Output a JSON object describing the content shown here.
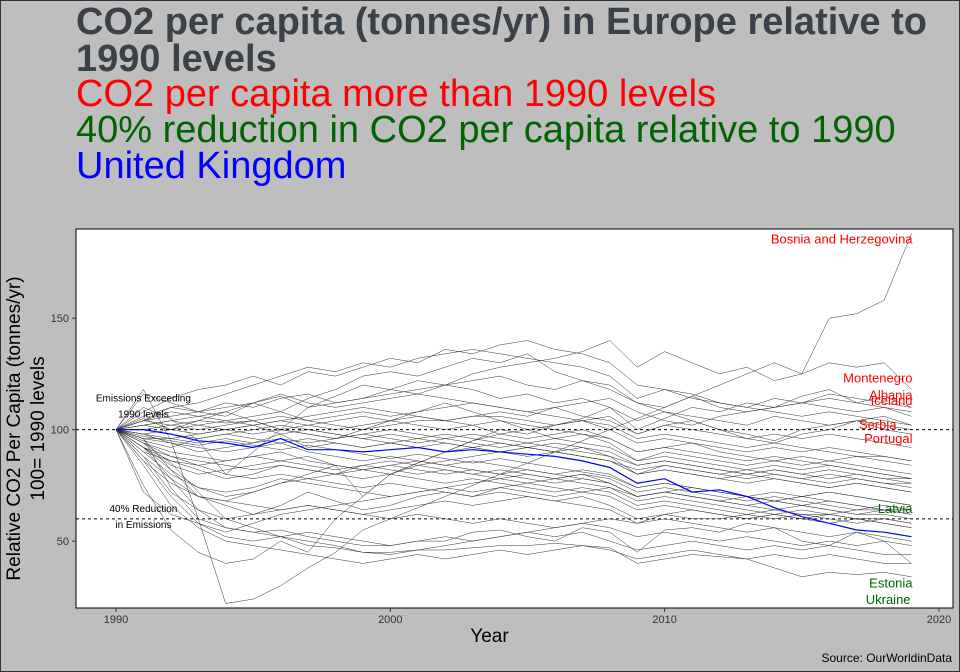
{
  "title": "CO2 per capita (tonnes/yr) in Europe relative to 1990 levels",
  "subtitle_lines": [
    {
      "text": "CO2 per capita more than 1990 levels",
      "color": "#ff0000"
    },
    {
      "text": "40% reduction in CO2 per capita relative to 1990",
      "color": "#006400"
    },
    {
      "text": "United Kingdom",
      "color": "#0000ff"
    }
  ],
  "caption": "Source: OurWorldinData",
  "colors": {
    "background": "#bebebe",
    "panel": "#ffffff",
    "series": "#333333",
    "highlight": "#0000ff",
    "above": "#ff0000",
    "below": "#006400"
  },
  "chart_data": {
    "type": "line",
    "xlabel": "Year",
    "ylabel": "Relative CO2 Per Capita (tonnes/yr)\n100= 1990 levels",
    "xlim": [
      1990,
      2020
    ],
    "ylim": [
      20,
      190
    ],
    "xticks": [
      1990,
      2000,
      2010,
      2020
    ],
    "yticks": [
      50,
      100,
      150
    ],
    "grid": false,
    "reference_lines": [
      {
        "y": 100,
        "style": "dashed",
        "label": "Emissions Exceeding\n1990 levels"
      },
      {
        "y": 60,
        "style": "dashed",
        "label": "40% Reduction\nin Emissions"
      }
    ],
    "x": [
      1990,
      1991,
      1992,
      1993,
      1994,
      1995,
      1996,
      1997,
      1998,
      1999,
      2000,
      2001,
      2002,
      2003,
      2004,
      2005,
      2006,
      2007,
      2008,
      2009,
      2010,
      2011,
      2012,
      2013,
      2014,
      2015,
      2016,
      2017,
      2018,
      2019
    ],
    "highlight_series": {
      "name": "United Kingdom",
      "values": [
        100,
        100,
        98,
        95,
        94,
        92,
        96,
        91,
        91,
        90,
        91,
        92,
        90,
        91,
        90,
        89,
        88,
        86,
        83,
        76,
        78,
        72,
        73,
        70,
        65,
        61,
        58,
        55,
        54,
        52
      ]
    },
    "labeled_series": [
      {
        "name": "Bosnia and Herzegovina",
        "group": "above",
        "values": [
          100,
          118,
          95,
          60,
          22,
          24,
          30,
          38,
          45,
          55,
          60,
          65,
          70,
          75,
          80,
          85,
          90,
          95,
          100,
          105,
          110,
          115,
          120,
          125,
          130,
          125,
          150,
          152,
          158,
          188
        ]
      },
      {
        "name": "Montenegro",
        "group": "above",
        "values": [
          100,
          110,
          105,
          95,
          80,
          90,
          100,
          110,
          115,
          120,
          118,
          122,
          120,
          125,
          128,
          130,
          132,
          135,
          140,
          128,
          135,
          130,
          125,
          128,
          122,
          125,
          130,
          128,
          130,
          118
        ]
      },
      {
        "name": "Albania",
        "group": "above",
        "values": [
          100,
          75,
          55,
          45,
          40,
          42,
          50,
          45,
          60,
          70,
          80,
          85,
          90,
          95,
          100,
          98,
          102,
          105,
          110,
          100,
          105,
          110,
          108,
          112,
          110,
          115,
          118,
          112,
          115,
          110
        ]
      },
      {
        "name": "Iceland",
        "group": "above",
        "values": [
          100,
          102,
          104,
          106,
          104,
          102,
          104,
          106,
          108,
          110,
          108,
          106,
          104,
          106,
          108,
          106,
          110,
          112,
          114,
          108,
          104,
          102,
          106,
          108,
          110,
          112,
          114,
          112,
          110,
          108
        ]
      },
      {
        "name": "Serbia",
        "group": "above",
        "values": [
          100,
          96,
          82,
          70,
          68,
          72,
          76,
          80,
          84,
          70,
          80,
          85,
          90,
          95,
          98,
          100,
          102,
          104,
          106,
          98,
          102,
          104,
          100,
          98,
          95,
          100,
          102,
          104,
          106,
          102
        ]
      },
      {
        "name": "Portugal",
        "group": "above",
        "values": [
          100,
          104,
          110,
          108,
          106,
          112,
          108,
          114,
          118,
          124,
          126,
          124,
          128,
          132,
          130,
          134,
          126,
          122,
          118,
          112,
          108,
          104,
          100,
          96,
          94,
          98,
          100,
          104,
          100,
          98
        ]
      },
      {
        "name": "Latvia",
        "group": "below",
        "values": [
          100,
          92,
          78,
          64,
          56,
          54,
          52,
          50,
          48,
          45,
          44,
          46,
          48,
          50,
          52,
          54,
          56,
          58,
          60,
          58,
          62,
          60,
          60,
          62,
          60,
          62,
          62,
          64,
          64,
          64
        ]
      },
      {
        "name": "Estonia",
        "group": "below",
        "values": [
          100,
          96,
          74,
          60,
          56,
          54,
          55,
          52,
          50,
          48,
          48,
          50,
          50,
          54,
          55,
          52,
          50,
          56,
          54,
          45,
          55,
          56,
          54,
          58,
          56,
          50,
          48,
          54,
          50,
          40
        ]
      },
      {
        "name": "Ukraine",
        "group": "below",
        "values": [
          100,
          94,
          85,
          72,
          60,
          56,
          52,
          48,
          47,
          45,
          45,
          46,
          46,
          47,
          48,
          48,
          49,
          48,
          47,
          40,
          42,
          44,
          43,
          42,
          38,
          34,
          36,
          35,
          36,
          34
        ]
      }
    ],
    "other_series": [
      [
        100,
        116,
        112,
        108,
        110,
        112,
        115,
        110,
        112,
        114,
        116,
        118,
        120,
        122,
        124,
        120,
        118,
        122,
        120,
        112,
        110,
        115,
        110,
        108,
        110,
        112,
        110,
        108,
        110,
        106
      ],
      [
        100,
        108,
        114,
        118,
        120,
        124,
        120,
        126,
        124,
        128,
        132,
        130,
        136,
        134,
        138,
        140,
        136,
        134,
        130,
        120,
        118,
        114,
        112,
        110,
        108,
        106,
        108,
        106,
        104,
        102
      ],
      [
        100,
        106,
        110,
        112,
        116,
        120,
        124,
        128,
        126,
        130,
        128,
        132,
        134,
        136,
        134,
        132,
        130,
        128,
        124,
        114,
        118,
        116,
        112,
        110,
        114,
        112,
        116,
        114,
        112,
        110
      ],
      [
        100,
        104,
        106,
        108,
        112,
        110,
        114,
        116,
        112,
        114,
        118,
        116,
        120,
        118,
        114,
        116,
        112,
        114,
        110,
        104,
        108,
        106,
        104,
        102,
        106,
        104,
        102,
        104,
        102,
        100
      ],
      [
        100,
        102,
        104,
        102,
        104,
        106,
        108,
        104,
        106,
        108,
        106,
        108,
        110,
        112,
        110,
        108,
        110,
        106,
        104,
        98,
        102,
        100,
        98,
        96,
        98,
        96,
        98,
        96,
        94,
        92
      ],
      [
        100,
        100,
        102,
        104,
        103,
        104,
        106,
        104,
        102,
        100,
        102,
        104,
        104,
        106,
        106,
        104,
        102,
        104,
        100,
        94,
        96,
        94,
        92,
        90,
        92,
        90,
        92,
        90,
        88,
        86
      ],
      [
        100,
        104,
        102,
        100,
        102,
        104,
        100,
        102,
        104,
        106,
        104,
        102,
        100,
        102,
        98,
        96,
        98,
        100,
        96,
        90,
        92,
        94,
        90,
        88,
        86,
        88,
        86,
        88,
        86,
        84
      ],
      [
        100,
        98,
        100,
        102,
        100,
        98,
        100,
        98,
        96,
        98,
        100,
        98,
        96,
        98,
        96,
        94,
        96,
        94,
        92,
        86,
        88,
        86,
        84,
        82,
        84,
        82,
        84,
        82,
        80,
        78
      ],
      [
        100,
        102,
        100,
        98,
        100,
        102,
        98,
        100,
        98,
        96,
        98,
        96,
        98,
        96,
        94,
        92,
        94,
        92,
        90,
        84,
        86,
        84,
        82,
        80,
        82,
        80,
        78,
        80,
        78,
        76
      ],
      [
        100,
        98,
        96,
        94,
        96,
        94,
        98,
        92,
        94,
        92,
        94,
        92,
        90,
        92,
        90,
        88,
        90,
        88,
        86,
        80,
        82,
        80,
        78,
        76,
        78,
        76,
        74,
        76,
        74,
        72
      ],
      [
        100,
        96,
        94,
        92,
        90,
        92,
        94,
        90,
        88,
        86,
        88,
        86,
        84,
        86,
        84,
        82,
        80,
        82,
        80,
        74,
        76,
        74,
        72,
        70,
        72,
        70,
        72,
        70,
        68,
        66
      ],
      [
        100,
        97,
        95,
        93,
        95,
        93,
        91,
        93,
        91,
        89,
        87,
        89,
        87,
        85,
        87,
        85,
        83,
        81,
        79,
        74,
        76,
        74,
        72,
        70,
        68,
        70,
        68,
        66,
        64,
        62
      ],
      [
        100,
        94,
        90,
        88,
        86,
        88,
        90,
        86,
        84,
        82,
        84,
        82,
        80,
        82,
        80,
        78,
        76,
        78,
        76,
        70,
        72,
        70,
        68,
        66,
        64,
        66,
        64,
        62,
        62,
        60
      ],
      [
        100,
        92,
        88,
        86,
        84,
        82,
        84,
        82,
        80,
        78,
        80,
        78,
        76,
        78,
        76,
        74,
        72,
        74,
        72,
        66,
        68,
        66,
        64,
        62,
        64,
        62,
        60,
        58,
        60,
        58
      ],
      [
        100,
        90,
        86,
        84,
        80,
        78,
        80,
        78,
        76,
        74,
        76,
        74,
        72,
        70,
        72,
        70,
        68,
        66,
        64,
        58,
        60,
        58,
        56,
        54,
        56,
        54,
        52,
        54,
        52,
        50
      ],
      [
        100,
        92,
        82,
        74,
        70,
        72,
        76,
        78,
        80,
        82,
        80,
        84,
        86,
        88,
        90,
        92,
        90,
        92,
        88,
        80,
        84,
        82,
        80,
        78,
        80,
        78,
        76,
        78,
        76,
        74
      ],
      [
        100,
        88,
        72,
        64,
        60,
        62,
        64,
        66,
        64,
        62,
        64,
        66,
        68,
        66,
        68,
        70,
        68,
        70,
        66,
        60,
        62,
        64,
        62,
        60,
        62,
        60,
        62,
        60,
        58,
        56
      ],
      [
        100,
        86,
        70,
        58,
        52,
        50,
        52,
        54,
        52,
        50,
        48,
        50,
        52,
        50,
        52,
        54,
        52,
        54,
        50,
        46,
        48,
        50,
        48,
        46,
        48,
        46,
        48,
        46,
        44,
        44
      ],
      [
        100,
        84,
        66,
        56,
        50,
        48,
        46,
        44,
        42,
        40,
        42,
        44,
        42,
        44,
        46,
        44,
        46,
        48,
        46,
        42,
        44,
        46,
        44,
        42,
        44,
        42,
        44,
        42,
        40,
        40
      ],
      [
        100,
        90,
        80,
        74,
        72,
        74,
        78,
        76,
        74,
        72,
        70,
        72,
        74,
        72,
        74,
        72,
        70,
        72,
        70,
        64,
        66,
        64,
        62,
        60,
        62,
        60,
        58,
        60,
        58,
        56
      ],
      [
        100,
        94,
        88,
        84,
        86,
        88,
        86,
        84,
        82,
        84,
        82,
        80,
        82,
        80,
        78,
        76,
        78,
        76,
        74,
        68,
        70,
        68,
        66,
        64,
        62,
        64,
        62,
        60,
        60,
        58
      ],
      [
        100,
        95,
        92,
        96,
        98,
        96,
        94,
        96,
        94,
        92,
        94,
        92,
        94,
        92,
        90,
        92,
        90,
        88,
        86,
        80,
        82,
        80,
        78,
        80,
        78,
        76,
        74,
        76,
        74,
        72
      ],
      [
        100,
        88,
        78,
        70,
        66,
        62,
        66,
        72,
        68,
        64,
        66,
        70,
        72,
        70,
        74,
        76,
        74,
        72,
        74,
        70,
        72,
        70,
        68,
        70,
        68,
        66,
        68,
        66,
        64,
        64
      ],
      [
        100,
        96,
        96,
        98,
        100,
        102,
        104,
        102,
        100,
        102,
        104,
        106,
        104,
        102,
        104,
        102,
        100,
        98,
        96,
        90,
        92,
        90,
        88,
        86,
        88,
        86,
        84,
        82,
        80,
        78
      ],
      [
        100,
        104,
        108,
        106,
        108,
        112,
        116,
        112,
        110,
        112,
        114,
        116,
        114,
        112,
        110,
        108,
        106,
        104,
        102,
        96,
        98,
        96,
        94,
        92,
        94,
        92,
        90,
        88,
        88,
        86
      ],
      [
        100,
        92,
        84,
        80,
        82,
        84,
        86,
        88,
        84,
        82,
        84,
        86,
        84,
        82,
        80,
        82,
        80,
        78,
        76,
        70,
        72,
        70,
        68,
        66,
        68,
        66,
        64,
        62,
        64,
        62
      ],
      [
        100,
        86,
        76,
        70,
        68,
        66,
        64,
        66,
        64,
        62,
        60,
        62,
        60,
        58,
        60,
        58,
        56,
        58,
        56,
        52,
        54,
        52,
        50,
        52,
        50,
        48,
        50,
        48,
        50,
        48
      ],
      [
        100,
        92,
        86,
        82,
        78,
        80,
        84,
        82,
        80,
        84,
        86,
        84,
        82,
        80,
        82,
        80,
        78,
        80,
        78,
        72,
        74,
        72,
        70,
        68,
        70,
        68,
        66,
        64,
        66,
        64
      ],
      [
        100,
        100,
        98,
        96,
        98,
        100,
        102,
        100,
        98,
        96,
        94,
        96,
        94,
        92,
        94,
        92,
        90,
        88,
        86,
        82,
        84,
        82,
        80,
        82,
        80,
        78,
        80,
        78,
        76,
        76
      ],
      [
        100,
        98,
        94,
        90,
        92,
        94,
        96,
        94,
        96,
        98,
        96,
        94,
        96,
        94,
        92,
        94,
        92,
        90,
        88,
        84,
        86,
        84,
        82,
        80,
        82,
        80,
        82,
        80,
        78,
        78
      ],
      [
        100,
        72,
        62,
        58,
        54,
        58,
        62,
        64,
        66,
        68,
        70,
        72,
        74,
        76,
        78,
        80,
        78,
        80,
        76,
        70,
        72,
        74,
        72,
        70,
        68,
        70,
        72,
        70,
        68,
        66
      ],
      [
        100,
        105,
        100,
        104,
        108,
        104,
        100,
        98,
        96,
        100,
        104,
        108,
        112,
        108,
        104,
        100,
        96,
        98,
        94,
        86,
        90,
        88,
        86,
        84,
        86,
        84,
        86,
        84,
        82,
        80
      ]
    ]
  }
}
